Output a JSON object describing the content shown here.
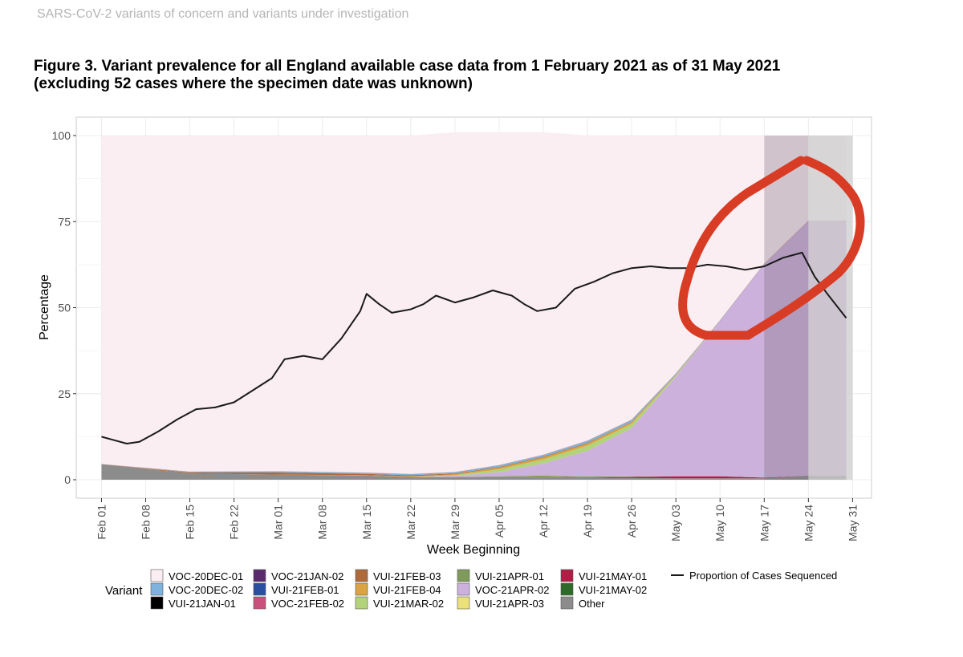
{
  "header": {
    "text": "SARS-CoV-2 variants of concern and variants under investigation"
  },
  "figure": {
    "title_line1": "Figure 3. Variant prevalence for all England available case data from 1 February 2021 as of 31 May 2021",
    "title_line2": "(excluding 52 cases where the specimen date was unknown)"
  },
  "colors": {
    "VOC-20DEC-01": "#fbeef2",
    "VOC-20DEC-02": "#7fb2dc",
    "VUI-21JAN-01": "#000000",
    "VOC-21JAN-02": "#5a2a6e",
    "VUI-21FEB-01": "#2a4fa0",
    "VOC-21FEB-02": "#c9507b",
    "VUI-21FEB-03": "#b06a3a",
    "VUI-21FEB-04": "#d9a441",
    "VUI-21MAR-02": "#b2d37a",
    "VUI-21APR-01": "#7f9a5a",
    "VOC-21APR-02": "#ccb1dc",
    "VUI-21APR-03": "#ece07a",
    "VUI-21MAY-01": "#b31d45",
    "VUI-21MAY-02": "#2e6b2a",
    "Other": "#8c8c8c",
    "line": "#1a1a1a",
    "annotation": "#d83c25",
    "shade_grey": "#cccccc",
    "panel_border": "#cccccc",
    "grid": "#ececec"
  },
  "chart_data": {
    "type": "area",
    "title": "",
    "xlabel": "Week Beginning",
    "ylabel": "Percentage",
    "ylim": [
      0,
      100
    ],
    "yticks": [
      0,
      25,
      50,
      75,
      100
    ],
    "xlim": [
      "2021-01-28",
      "2021-06-03"
    ],
    "xticks": [
      "2021-02-01",
      "2021-02-08",
      "2021-02-15",
      "2021-02-22",
      "2021-03-01",
      "2021-03-08",
      "2021-03-15",
      "2021-03-22",
      "2021-03-29",
      "2021-04-05",
      "2021-04-12",
      "2021-04-19",
      "2021-04-26",
      "2021-05-03",
      "2021-05-10",
      "2021-05-17",
      "2021-05-24",
      "2021-05-31"
    ],
    "xtick_labels": [
      "Feb 01",
      "Feb 08",
      "Feb 15",
      "Feb 22",
      "Mar 01",
      "Mar 08",
      "Mar 15",
      "Mar 22",
      "Mar 29",
      "Apr 05",
      "Apr 12",
      "Apr 19",
      "Apr 26",
      "May 03",
      "May 10",
      "May 17",
      "May 24",
      "May 31"
    ],
    "grid": true,
    "legend_position": "bottom",
    "legend_title": "Variant",
    "legend_entries": [
      "VOC-20DEC-01",
      "VOC-20DEC-02",
      "VUI-21JAN-01",
      "VOC-21JAN-02",
      "VUI-21FEB-01",
      "VOC-21FEB-02",
      "VUI-21FEB-03",
      "VUI-21FEB-04",
      "VUI-21MAR-02",
      "VUI-21APR-01",
      "VOC-21APR-02",
      "VUI-21APR-03",
      "VUI-21MAY-01",
      "VUI-21MAY-02",
      "Other"
    ],
    "line_legend_label": "Proportion of Cases Sequenced",
    "area_x": [
      "2021-02-01",
      "2021-02-15",
      "2021-03-01",
      "2021-03-15",
      "2021-03-22",
      "2021-03-29",
      "2021-04-05",
      "2021-04-12",
      "2021-04-19",
      "2021-04-26",
      "2021-05-03",
      "2021-05-10",
      "2021-05-17",
      "2021-05-24"
    ],
    "area_end": "2021-05-30",
    "series": [
      {
        "name": "Other",
        "values": [
          4.5,
          1.8,
          1.5,
          1.2,
          0.8,
          0.8,
          0.8,
          0.8,
          0.5,
          0.5,
          0.4,
          0.4,
          0.4,
          1.2
        ]
      },
      {
        "name": "VUI-21MAY-01",
        "values": [
          0,
          0,
          0,
          0,
          0,
          0,
          0,
          0,
          0.1,
          0.3,
          0.6,
          0.6,
          0.2,
          0
        ]
      },
      {
        "name": "VUI-21APR-01",
        "values": [
          0,
          0,
          0,
          0,
          0,
          0,
          0.2,
          0.4,
          0.3,
          0.2,
          0,
          0,
          0,
          0
        ]
      },
      {
        "name": "VOC-21APR-02",
        "values": [
          0,
          0,
          0,
          0,
          0,
          0.3,
          1.2,
          3.5,
          7.5,
          14,
          29,
          45,
          62,
          74
        ]
      },
      {
        "name": "VUI-21MAR-02",
        "values": [
          0,
          0,
          0,
          0,
          0,
          0.2,
          0.8,
          1.2,
          1.5,
          1.2,
          0.3,
          0,
          0,
          0
        ]
      },
      {
        "name": "VUI-21FEB-04",
        "values": [
          0,
          0,
          0,
          0.1,
          0.2,
          0.3,
          0.5,
          0.6,
          0.6,
          0.5,
          0.2,
          0,
          0,
          0
        ]
      },
      {
        "name": "VUI-21FEB-03",
        "values": [
          0,
          0.3,
          0.6,
          0.4,
          0.3,
          0.2,
          0.2,
          0.2,
          0.2,
          0.1,
          0,
          0,
          0,
          0
        ]
      },
      {
        "name": "VOC-20DEC-02",
        "values": [
          0,
          0.2,
          0.3,
          0.3,
          0.3,
          0.4,
          0.5,
          0.5,
          0.6,
          0.6,
          0.3,
          0.2,
          0.1,
          0
        ]
      },
      {
        "name": "VOC-20DEC-01",
        "values": [
          95.5,
          97.7,
          97.6,
          98,
          98.4,
          98.8,
          96.8,
          93.8,
          88.8,
          82.6,
          69.2,
          53.8,
          37.3,
          24.8
        ]
      }
    ],
    "proportion_sequenced": {
      "x": [
        "2021-02-01",
        "2021-02-03",
        "2021-02-05",
        "2021-02-07",
        "2021-02-10",
        "2021-02-13",
        "2021-02-16",
        "2021-02-19",
        "2021-02-22",
        "2021-02-25",
        "2021-02-28",
        "2021-03-02",
        "2021-03-05",
        "2021-03-08",
        "2021-03-11",
        "2021-03-14",
        "2021-03-15",
        "2021-03-17",
        "2021-03-19",
        "2021-03-22",
        "2021-03-24",
        "2021-03-26",
        "2021-03-29",
        "2021-04-01",
        "2021-04-04",
        "2021-04-07",
        "2021-04-09",
        "2021-04-11",
        "2021-04-14",
        "2021-04-17",
        "2021-04-20",
        "2021-04-23",
        "2021-04-26",
        "2021-04-29",
        "2021-05-02",
        "2021-05-05",
        "2021-05-08",
        "2021-05-11",
        "2021-05-14",
        "2021-05-17",
        "2021-05-20",
        "2021-05-23",
        "2021-05-25",
        "2021-05-27",
        "2021-05-30"
      ],
      "values": [
        12.5,
        11.5,
        10.5,
        11,
        14,
        17.5,
        20.5,
        21,
        22.5,
        26,
        29.5,
        35,
        36,
        35,
        41,
        49,
        54,
        51,
        48.5,
        49.5,
        51,
        53.5,
        51.5,
        53,
        55,
        53.5,
        51,
        49,
        50,
        55.5,
        57.5,
        60,
        61.5,
        62,
        61.5,
        61.5,
        62.5,
        62,
        61,
        62,
        64.5,
        66,
        59,
        54,
        47
      ]
    },
    "shaded_periods": [
      {
        "from": "2021-05-17",
        "to": "2021-05-24"
      },
      {
        "from": "2021-05-24",
        "to": "2021-05-31"
      }
    ]
  }
}
